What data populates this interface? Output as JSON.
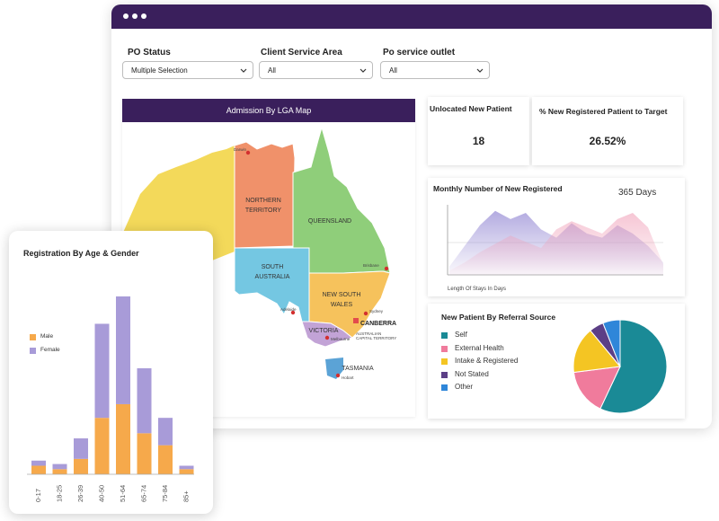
{
  "filters": [
    {
      "label": "PO Status",
      "value": "Multiple Selection"
    },
    {
      "label": "Client Service Area",
      "value": "All"
    },
    {
      "label": "Po service outlet",
      "value": "All"
    }
  ],
  "map": {
    "title": "Admission By LGA Map",
    "regions": {
      "nt": "NORTHERN TERRITORY",
      "qld": "QUEENSLAND",
      "sa": "SOUTH AUSTRALIA",
      "nsw": "NEW SOUTH WALES",
      "vic": "VICTORIA",
      "tas": "TASMANIA",
      "act": "AUSTRALIAN CAPITAL TERRITORY"
    },
    "cities": {
      "darwin": "Darwin",
      "brisbane": "Brisbane",
      "sydney": "Sydney",
      "canberra": "CANBERRA",
      "adelaide": "Adelaide",
      "melbourne": "Melbourne",
      "hobart": "Hobart"
    },
    "colors": {
      "wa": "#f3d95a",
      "nt": "#f0916a",
      "qld": "#8fce7a",
      "sa": "#74c7e2",
      "nsw": "#f6c25c",
      "vic": "#c2a3d6",
      "tas": "#5ba3d6",
      "act": "#e24c4c"
    }
  },
  "kpis": [
    {
      "title": "Unlocated New Patient",
      "value": "18"
    },
    {
      "title": "% New Registered Patient to Target",
      "value": "26.52%"
    }
  ],
  "monthly": {
    "title": "Monthly Number of New Registered",
    "badge": "365 Days",
    "xlabel": "Length Of Stays In Days"
  },
  "referral": {
    "title": "New Patient By Referral Source",
    "legend": [
      {
        "label": "Self",
        "color": "#1a8a96"
      },
      {
        "label": "External Health",
        "color": "#f07b9c"
      },
      {
        "label": "Intake & Registered",
        "color": "#f4c523"
      },
      {
        "label": "Not Stated",
        "color": "#5c3f86"
      },
      {
        "label": "Other",
        "color": "#2f86d9"
      }
    ]
  },
  "age_gender": {
    "title": "Registration By Age & Gender",
    "legend": [
      {
        "label": "Male",
        "color": "#f6a94b"
      },
      {
        "label": "Female",
        "color": "#a89bd8"
      }
    ]
  },
  "chart_data": [
    {
      "type": "bar",
      "title": "Registration By Age & Gender",
      "categories": [
        "0-17",
        "18-25",
        "26-39",
        "40-50",
        "51-64",
        "65-74",
        "75-84",
        "85+"
      ],
      "series": [
        {
          "name": "Male",
          "values": [
            5,
            3,
            9,
            33,
            41,
            24,
            17,
            3
          ]
        },
        {
          "name": "Female",
          "values": [
            3,
            3,
            12,
            55,
            63,
            38,
            16,
            2
          ]
        }
      ]
    },
    {
      "type": "pie",
      "title": "New Patient By Referral Source",
      "labels": [
        "Self",
        "External Health",
        "Intake & Registered",
        "Not Stated",
        "Other"
      ],
      "values": [
        57,
        16,
        16,
        5,
        6
      ]
    },
    {
      "type": "area",
      "title": "Monthly Number of New Registered",
      "xlabel": "Length Of Stays In Days",
      "series": [
        {
          "values": [
            8,
            28,
            48,
            62,
            54,
            60,
            44,
            36,
            50,
            40,
            36,
            48,
            40,
            28,
            12
          ]
        },
        {
          "values": [
            4,
            12,
            22,
            30,
            38,
            32,
            26,
            44,
            52,
            46,
            40,
            54,
            60,
            46,
            10
          ]
        }
      ]
    }
  ]
}
